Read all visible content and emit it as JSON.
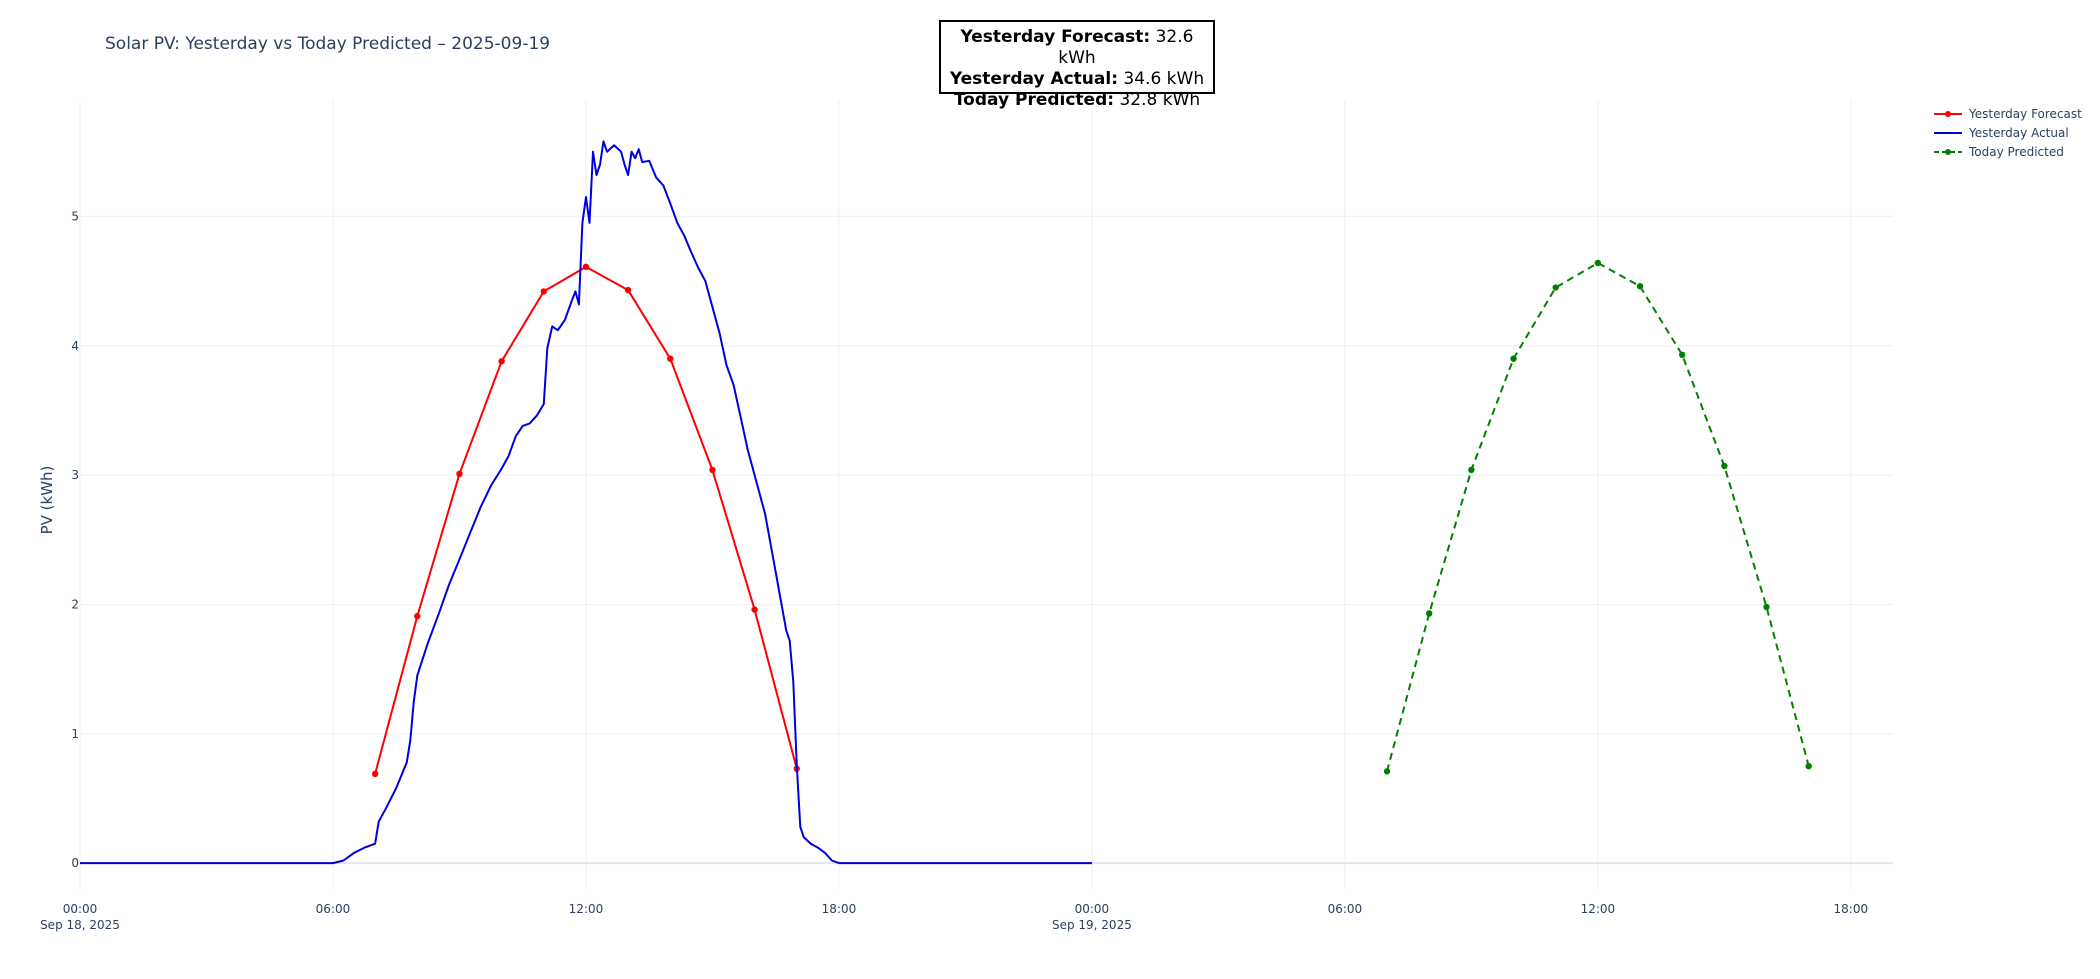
{
  "chart_data": {
    "type": "line",
    "title": "Solar PV: Yesterday vs Today Predicted – 2025-09-19",
    "ylabel": "PV (kWh)",
    "xlabel": "",
    "x_range": [
      "2025-09-18T00:00",
      "2025-09-19T19:00"
    ],
    "ylim": [
      -0.2,
      5.9
    ],
    "y_ticks": [
      0,
      1,
      2,
      3,
      4,
      5
    ],
    "x_ticks": [
      {
        "t": "2025-09-18T00:00",
        "label": "00:00",
        "sub": "Sep 18, 2025"
      },
      {
        "t": "2025-09-18T06:00",
        "label": "06:00",
        "sub": ""
      },
      {
        "t": "2025-09-18T12:00",
        "label": "12:00",
        "sub": ""
      },
      {
        "t": "2025-09-18T18:00",
        "label": "18:00",
        "sub": ""
      },
      {
        "t": "2025-09-19T00:00",
        "label": "00:00",
        "sub": "Sep 19, 2025"
      },
      {
        "t": "2025-09-19T06:00",
        "label": "06:00",
        "sub": ""
      },
      {
        "t": "2025-09-19T12:00",
        "label": "12:00",
        "sub": ""
      },
      {
        "t": "2025-09-19T18:00",
        "label": "18:00",
        "sub": ""
      }
    ],
    "grid": true,
    "legend_position": "top-right",
    "series": [
      {
        "name": "Yesterday Forecast",
        "color": "#ff0000",
        "style": "solid",
        "markers": true,
        "points": [
          [
            "2025-09-18T07:00",
            0.69
          ],
          [
            "2025-09-18T08:00",
            1.91
          ],
          [
            "2025-09-18T09:00",
            3.01
          ],
          [
            "2025-09-18T10:00",
            3.88
          ],
          [
            "2025-09-18T11:00",
            4.42
          ],
          [
            "2025-09-18T12:00",
            4.61
          ],
          [
            "2025-09-18T13:00",
            4.43
          ],
          [
            "2025-09-18T14:00",
            3.9
          ],
          [
            "2025-09-18T15:00",
            3.04
          ],
          [
            "2025-09-18T16:00",
            1.96
          ],
          [
            "2025-09-18T17:00",
            0.73
          ]
        ]
      },
      {
        "name": "Yesterday Actual",
        "color": "#0000dd",
        "style": "solid",
        "markers": false,
        "points": [
          [
            "2025-09-18T00:00",
            0
          ],
          [
            "2025-09-18T06:00",
            0
          ],
          [
            "2025-09-18T06:15",
            0.02
          ],
          [
            "2025-09-18T06:30",
            0.08
          ],
          [
            "2025-09-18T06:45",
            0.12
          ],
          [
            "2025-09-18T07:00",
            0.15
          ],
          [
            "2025-09-18T07:05",
            0.32
          ],
          [
            "2025-09-18T07:15",
            0.42
          ],
          [
            "2025-09-18T07:30",
            0.58
          ],
          [
            "2025-09-18T07:45",
            0.78
          ],
          [
            "2025-09-18T07:50",
            0.95
          ],
          [
            "2025-09-18T07:55",
            1.25
          ],
          [
            "2025-09-18T08:00",
            1.45
          ],
          [
            "2025-09-18T08:15",
            1.7
          ],
          [
            "2025-09-18T08:30",
            1.92
          ],
          [
            "2025-09-18T08:45",
            2.15
          ],
          [
            "2025-09-18T09:00",
            2.35
          ],
          [
            "2025-09-18T09:15",
            2.55
          ],
          [
            "2025-09-18T09:30",
            2.75
          ],
          [
            "2025-09-18T09:45",
            2.92
          ],
          [
            "2025-09-18T10:00",
            3.05
          ],
          [
            "2025-09-18T10:10",
            3.15
          ],
          [
            "2025-09-18T10:20",
            3.3
          ],
          [
            "2025-09-18T10:30",
            3.38
          ],
          [
            "2025-09-18T10:40",
            3.4
          ],
          [
            "2025-09-18T10:50",
            3.46
          ],
          [
            "2025-09-18T11:00",
            3.55
          ],
          [
            "2025-09-18T11:05",
            3.98
          ],
          [
            "2025-09-18T11:12",
            4.15
          ],
          [
            "2025-09-18T11:20",
            4.12
          ],
          [
            "2025-09-18T11:30",
            4.2
          ],
          [
            "2025-09-18T11:40",
            4.35
          ],
          [
            "2025-09-18T11:45",
            4.42
          ],
          [
            "2025-09-18T11:50",
            4.32
          ],
          [
            "2025-09-18T11:55",
            4.95
          ],
          [
            "2025-09-18T12:00",
            5.15
          ],
          [
            "2025-09-18T12:05",
            4.95
          ],
          [
            "2025-09-18T12:10",
            5.5
          ],
          [
            "2025-09-18T12:15",
            5.32
          ],
          [
            "2025-09-18T12:20",
            5.4
          ],
          [
            "2025-09-18T12:25",
            5.58
          ],
          [
            "2025-09-18T12:30",
            5.5
          ],
          [
            "2025-09-18T12:40",
            5.55
          ],
          [
            "2025-09-18T12:50",
            5.5
          ],
          [
            "2025-09-18T12:55",
            5.4
          ],
          [
            "2025-09-18T13:00",
            5.32
          ],
          [
            "2025-09-18T13:05",
            5.5
          ],
          [
            "2025-09-18T13:10",
            5.45
          ],
          [
            "2025-09-18T13:15",
            5.52
          ],
          [
            "2025-09-18T13:20",
            5.42
          ],
          [
            "2025-09-18T13:30",
            5.43
          ],
          [
            "2025-09-18T13:40",
            5.3
          ],
          [
            "2025-09-18T13:50",
            5.24
          ],
          [
            "2025-09-18T14:00",
            5.1
          ],
          [
            "2025-09-18T14:10",
            4.95
          ],
          [
            "2025-09-18T14:20",
            4.85
          ],
          [
            "2025-09-18T14:30",
            4.72
          ],
          [
            "2025-09-18T14:40",
            4.6
          ],
          [
            "2025-09-18T14:50",
            4.5
          ],
          [
            "2025-09-18T15:00",
            4.3
          ],
          [
            "2025-09-18T15:10",
            4.1
          ],
          [
            "2025-09-18T15:20",
            3.85
          ],
          [
            "2025-09-18T15:30",
            3.7
          ],
          [
            "2025-09-18T15:40",
            3.45
          ],
          [
            "2025-09-18T15:50",
            3.2
          ],
          [
            "2025-09-18T16:00",
            3.0
          ],
          [
            "2025-09-18T16:15",
            2.7
          ],
          [
            "2025-09-18T16:30",
            2.25
          ],
          [
            "2025-09-18T16:45",
            1.8
          ],
          [
            "2025-09-18T16:50",
            1.72
          ],
          [
            "2025-09-18T16:55",
            1.4
          ],
          [
            "2025-09-18T17:00",
            0.75
          ],
          [
            "2025-09-18T17:05",
            0.28
          ],
          [
            "2025-09-18T17:10",
            0.2
          ],
          [
            "2025-09-18T17:20",
            0.15
          ],
          [
            "2025-09-18T17:30",
            0.12
          ],
          [
            "2025-09-18T17:40",
            0.08
          ],
          [
            "2025-09-18T17:50",
            0.02
          ],
          [
            "2025-09-18T18:00",
            0
          ],
          [
            "2025-09-19T00:00",
            0
          ]
        ]
      },
      {
        "name": "Today Predicted",
        "color": "#008000",
        "style": "dashed",
        "markers": true,
        "points": [
          [
            "2025-09-19T07:00",
            0.71
          ],
          [
            "2025-09-19T08:00",
            1.93
          ],
          [
            "2025-09-19T09:00",
            3.04
          ],
          [
            "2025-09-19T10:00",
            3.9
          ],
          [
            "2025-09-19T11:00",
            4.45
          ],
          [
            "2025-09-19T12:00",
            4.64
          ],
          [
            "2025-09-19T13:00",
            4.46
          ],
          [
            "2025-09-19T14:00",
            3.93
          ],
          [
            "2025-09-19T15:00",
            3.07
          ],
          [
            "2025-09-19T16:00",
            1.98
          ],
          [
            "2025-09-19T17:00",
            0.75
          ]
        ]
      }
    ],
    "annotation": [
      {
        "label": "Yesterday Forecast:",
        "value": "32.6 kWh"
      },
      {
        "label": "Yesterday Actual:",
        "value": "34.6 kWh"
      },
      {
        "label": "Today Predicted:",
        "value": "32.8 kWh"
      }
    ]
  }
}
